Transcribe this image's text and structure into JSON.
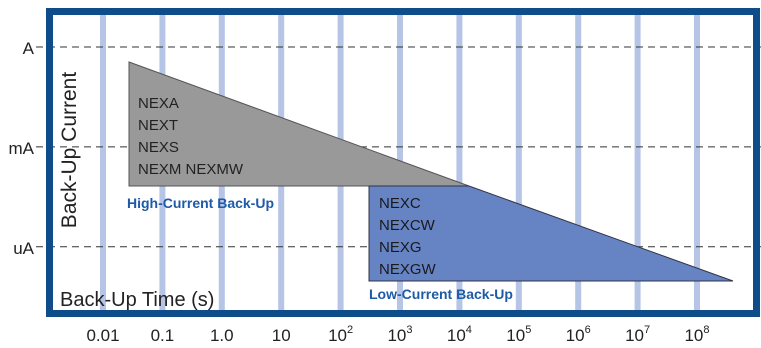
{
  "chart_data": {
    "type": "area",
    "title": "",
    "xlabel": "Back-Up Time (s)",
    "ylabel": "Back-Up Current",
    "x_tick_labels": [
      {
        "base": "0.01",
        "exp": ""
      },
      {
        "base": "0.1",
        "exp": ""
      },
      {
        "base": "1.0",
        "exp": ""
      },
      {
        "base": "10",
        "exp": ""
      },
      {
        "base": "10",
        "exp": "2"
      },
      {
        "base": "10",
        "exp": "3"
      },
      {
        "base": "10",
        "exp": "4"
      },
      {
        "base": "10",
        "exp": "5"
      },
      {
        "base": "10",
        "exp": "6"
      },
      {
        "base": "10",
        "exp": "7"
      },
      {
        "base": "10",
        "exp": "8"
      }
    ],
    "x_scale": "log10",
    "xlim_log10": [
      -2.3,
      8.6
    ],
    "y_tick_labels": [
      "A",
      "mA",
      "uA"
    ],
    "y_scale": "log10",
    "y_tick_values": [
      1,
      0.001,
      1e-06
    ],
    "ylim": [
      1e-07,
      10
    ],
    "grid": true,
    "series": [
      {
        "name": "High-Current Back-Up",
        "color": "#999999",
        "x_log10": [
          -1.3,
          -1.3,
          4.2,
          4.2
        ],
        "y": [
          0.2,
          0.0003,
          0.0003,
          0.0003
        ],
        "products": [
          "NEXA",
          "NEXT",
          "NEXS",
          "NEXM  NEXMW"
        ]
      },
      {
        "name": "Low-Current Back-Up",
        "color": "#6683c4",
        "x_log10": [
          2.6,
          2.6,
          8.4,
          4.1
        ],
        "y": [
          0.0003,
          3e-07,
          3e-07,
          0.0003
        ],
        "products": [
          "NEXC",
          "NEXCW",
          "NEXG",
          "NEXGW"
        ]
      }
    ]
  },
  "colors": {
    "frame": "#0f4c8a",
    "column": "#b6c4e6",
    "legend_text": "#1d5aa8"
  }
}
